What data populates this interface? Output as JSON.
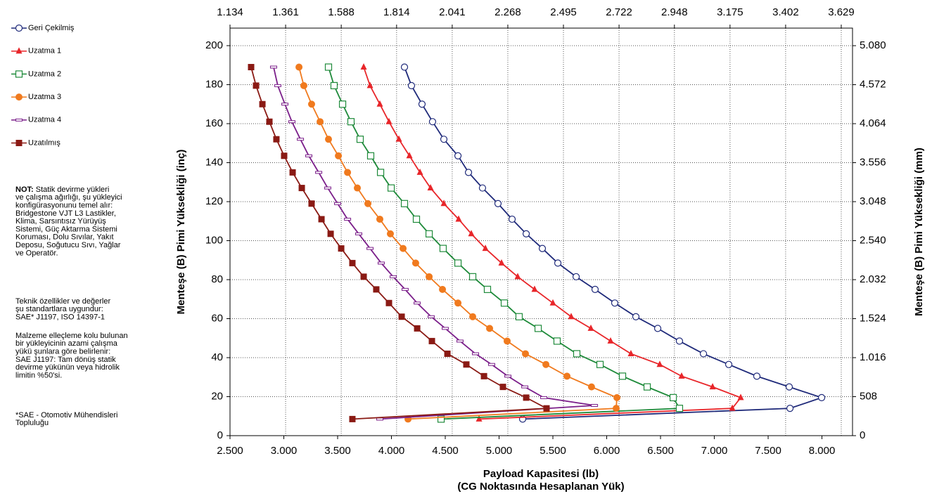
{
  "chart_data": {
    "type": "line",
    "x_label": [
      "Payload Kapasitesi (lb)",
      "(CG Noktasında Hesaplanan Yük)"
    ],
    "y_label": "Menteşe (B) Pimi Yüksekliği (inç)",
    "y2_label": "Menteşe (B) Pimi Yüksekliği (mm)",
    "xlim": [
      2500,
      8284
    ],
    "xticks": [
      {
        "value": 2500,
        "label": "2.500"
      },
      {
        "value": 3000,
        "label": "3.000"
      },
      {
        "value": 3500,
        "label": "3.500"
      },
      {
        "value": 4000,
        "label": "4.000"
      },
      {
        "value": 4500,
        "label": "4.500"
      },
      {
        "value": 5000,
        "label": "5.000"
      },
      {
        "value": 5500,
        "label": "5.500"
      },
      {
        "value": 6000,
        "label": "6.000"
      },
      {
        "value": 6500,
        "label": "6.500"
      },
      {
        "value": 7000,
        "label": "7.000"
      },
      {
        "value": 7500,
        "label": "7.500"
      },
      {
        "value": 8000,
        "label": "8.000"
      }
    ],
    "x2lim": [
      1134,
      3675
    ],
    "x2ticks": [
      {
        "value": 1134,
        "label": "1.134"
      },
      {
        "value": 1361,
        "label": "1.361"
      },
      {
        "value": 1588,
        "label": "1.588"
      },
      {
        "value": 1814,
        "label": "1.814"
      },
      {
        "value": 2041,
        "label": "2.041"
      },
      {
        "value": 2268,
        "label": "2.268"
      },
      {
        "value": 2495,
        "label": "2.495"
      },
      {
        "value": 2722,
        "label": "2.722"
      },
      {
        "value": 2948,
        "label": "2.948"
      },
      {
        "value": 3175,
        "label": "3.175"
      },
      {
        "value": 3402,
        "label": "3.402"
      },
      {
        "value": 3629,
        "label": "3.629"
      }
    ],
    "ylim": [
      0,
      209
    ],
    "yticks": [
      0,
      20,
      40,
      60,
      80,
      100,
      120,
      140,
      160,
      180,
      200
    ],
    "y2lim": [
      0,
      5309
    ],
    "y2ticks": [
      0,
      508,
      {
        "value": 1016,
        "label": "1.016"
      },
      {
        "value": 1524,
        "label": "1.524"
      },
      {
        "value": 2032,
        "label": "2.032"
      },
      {
        "value": 2540,
        "label": "2.540"
      },
      {
        "value": 3048,
        "label": "3.048"
      },
      {
        "value": 3556,
        "label": "3.556"
      },
      {
        "value": 4064,
        "label": "4.064"
      },
      {
        "value": 4572,
        "label": "4.572"
      },
      {
        "value": 5080,
        "label": "5.080"
      }
    ],
    "grid": true,
    "series": [
      {
        "name": "Geri Çekilmiş",
        "color": "#1f2a7a",
        "marker": "circle-open",
        "x": [
          4121,
          4186,
          4284,
          4382,
          4487,
          4618,
          4716,
          4846,
          4990,
          5121,
          5252,
          5402,
          5546,
          5716,
          5892,
          6075,
          6271,
          6474,
          6676,
          6899,
          7134,
          7395,
          7696,
          7997,
          7703,
          5219
        ],
        "values": [
          189,
          179.5,
          170,
          161,
          152,
          143.5,
          135,
          127,
          119,
          111,
          103.5,
          96,
          88.5,
          81.5,
          75,
          68,
          61,
          55,
          48.5,
          42,
          36.5,
          30.5,
          25,
          19.5,
          14,
          8.5
        ]
      },
      {
        "name": "Uzatma 1",
        "color": "#e8262a",
        "marker": "triangle",
        "x": [
          3742,
          3801,
          3892,
          3977,
          4069,
          4167,
          4265,
          4363,
          4487,
          4624,
          4742,
          4873,
          5023,
          5173,
          5330,
          5500,
          5670,
          5853,
          6036,
          6225,
          6493,
          6696,
          6984,
          7245,
          7167,
          4814
        ],
        "values": [
          189,
          179.5,
          170,
          161,
          152,
          143.5,
          135,
          127,
          119,
          111,
          103.5,
          96,
          88.5,
          81.5,
          75,
          68,
          61,
          55,
          48.5,
          42,
          36.5,
          30.5,
          25,
          19.5,
          14,
          8.5
        ]
      },
      {
        "name": "Uzatma 2",
        "color": "#1e8a3a",
        "marker": "square-open",
        "x": [
          3415,
          3467,
          3546,
          3624,
          3709,
          3807,
          3899,
          3997,
          4121,
          4232,
          4350,
          4480,
          4618,
          4755,
          4892,
          5049,
          5186,
          5363,
          5539,
          5722,
          5938,
          6147,
          6376,
          6618,
          6676,
          4461
        ],
        "values": [
          189,
          179.5,
          170,
          161,
          152,
          143.5,
          135,
          127,
          119,
          111,
          103.5,
          96,
          88.5,
          81.5,
          75,
          68,
          61,
          55,
          48.5,
          42,
          36.5,
          30.5,
          25,
          19.5,
          14,
          8.5
        ]
      },
      {
        "name": "Uzatma 3",
        "color": "#f07a1e",
        "marker": "circle",
        "x": [
          3141,
          3186,
          3258,
          3337,
          3415,
          3507,
          3592,
          3683,
          3781,
          3892,
          3990,
          4108,
          4225,
          4350,
          4474,
          4618,
          4755,
          4912,
          5075,
          5245,
          5435,
          5631,
          5859,
          6095,
          6088,
          4154
        ],
        "values": [
          189,
          179.5,
          170,
          161,
          152,
          143.5,
          135,
          127,
          119,
          111,
          103.5,
          96,
          88.5,
          81.5,
          75,
          68,
          61,
          55,
          48.5,
          42,
          36.5,
          30.5,
          25,
          19.5,
          14,
          8.5
        ]
      },
      {
        "name": "Uzatma 4",
        "color": "#7b1f8a",
        "marker": "dash",
        "x": [
          2905,
          2944,
          3010,
          3075,
          3154,
          3232,
          3324,
          3408,
          3500,
          3592,
          3696,
          3801,
          3905,
          4016,
          4127,
          4239,
          4369,
          4500,
          4637,
          4781,
          4931,
          5082,
          5239,
          5415,
          5886,
          3892
        ],
        "values": [
          189,
          179.5,
          170,
          161,
          152,
          143.5,
          135,
          127,
          119,
          111,
          103.5,
          96,
          88.5,
          81.5,
          75,
          68,
          61,
          55,
          48.5,
          42,
          36.5,
          30.5,
          25,
          19.5,
          15.5,
          8.5
        ]
      },
      {
        "name": "Uzatılmış",
        "color": "#8a1a14",
        "marker": "square",
        "x": [
          2696,
          2742,
          2801,
          2866,
          2931,
          3003,
          3082,
          3167,
          3258,
          3350,
          3435,
          3533,
          3637,
          3742,
          3859,
          3977,
          4095,
          4239,
          4376,
          4520,
          4696,
          4860,
          5036,
          5252,
          5441,
          3637
        ],
        "values": [
          189,
          179.5,
          170,
          161,
          152,
          143.5,
          135,
          127,
          119,
          111,
          103.5,
          96,
          88.5,
          81.5,
          75,
          68,
          61,
          55,
          48.5,
          42,
          36.5,
          30.5,
          25,
          19.5,
          14,
          8.5
        ]
      }
    ]
  },
  "notes": {
    "bold_label": "NOT:",
    "paragraphs": [
      [
        "Statik devirme yükleri",
        "ve çalışma ağırlığı, şu yükleyici",
        "konfigürasyonunu temel alır:",
        "Bridgestone VJT L3 Lastikler,",
        "Klima, Sarsıntısız Yürüyüş",
        "Sistemi, Güç Aktarma Sistemi",
        "Koruması, Dolu Sıvılar, Yakıt",
        "Deposu, Soğutucu Sıvı, Yağlar",
        "ve Operatör."
      ],
      [
        "Teknik özellikler ve değerler",
        "şu standartlara uygundur:",
        "SAE* J1197, ISO 14397-1"
      ],
      [
        "Malzeme elleçleme kolu bulunan",
        "bir yükleyicinin azami çalışma",
        "yükü şunlara göre belirlenir:",
        "SAE J1197:  Tam dönüş statik",
        "devirme yükünün veya hidrolik",
        "limitin  %50'si."
      ],
      [
        "*SAE - Otomotiv Mühendisleri",
        "Topluluğu"
      ]
    ]
  }
}
